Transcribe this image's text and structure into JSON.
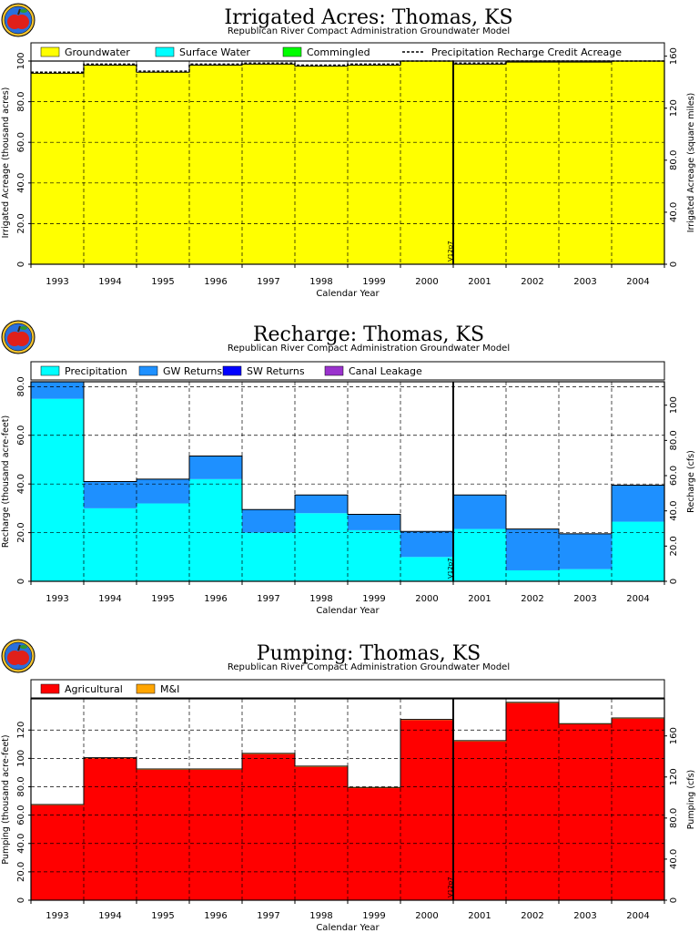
{
  "colors": {
    "groundwater": "#ffff00",
    "surface_water": "#00ffff",
    "commingled": "#00ff00",
    "precipitation": "#00ffff",
    "gw_returns": "#1e90ff",
    "sw_returns": "#0000ff",
    "canal_leakage": "#9a32cd",
    "agricultural": "#ff0000",
    "mi": "#ffa500",
    "logo_red": "#e0201a",
    "logo_ring": "#f4c430"
  },
  "logo_icon": "apple-logo-icon",
  "marker_label": "V12p7",
  "chart_data": [
    {
      "type": "area",
      "title": "Irrigated Acres: Thomas, KS",
      "subtitle": "Republican River Compact Administration Groundwater Model",
      "xlabel": "Calendar Year",
      "ylabel": "Irrigated Acreage (thousand acres)",
      "ylabel2": "Irrigated Acreage (square miles)",
      "categories": [
        "1993",
        "1994",
        "1995",
        "1996",
        "1997",
        "1998",
        "1999",
        "2000",
        "2001",
        "2002",
        "2003",
        "2004"
      ],
      "ylim": [
        0,
        100
      ],
      "yticks": [
        "0",
        "20.0",
        "40.0",
        "60.0",
        "80.0",
        "100"
      ],
      "y2lim": [
        0,
        156.25
      ],
      "y2ticks": [
        "0",
        "40.0",
        "80.0",
        "120",
        "160"
      ],
      "legend": [
        "Groundwater",
        "Surface Water",
        "Commingled",
        "Precipitation Recharge Credit Acreage"
      ],
      "legend_position": "top",
      "grid": true,
      "series": [
        {
          "name": "Groundwater",
          "values": [
            94,
            98,
            94.5,
            98,
            98.5,
            97.5,
            98,
            100,
            98.5,
            99.5,
            99.5,
            100
          ]
        },
        {
          "name": "Surface Water",
          "values": [
            0,
            0,
            0,
            0,
            0,
            0,
            0,
            0,
            0,
            0,
            0,
            0
          ]
        },
        {
          "name": "Commingled",
          "values": [
            0,
            0,
            0,
            0,
            0,
            0,
            0,
            0,
            0,
            0,
            0,
            0
          ]
        }
      ],
      "line_series": {
        "name": "Precipitation Recharge Credit Acreage",
        "values": [
          94.5,
          98.5,
          95,
          98.5,
          99,
          98,
          98.5,
          100.5,
          99,
          100,
          100,
          100.5
        ]
      }
    },
    {
      "type": "area",
      "title": "Recharge: Thomas, KS",
      "subtitle": "Republican River Compact Administration Groundwater Model",
      "xlabel": "Calendar Year",
      "ylabel": "Recharge (thousand acre-feet)",
      "ylabel2": "Recharge (cfs)",
      "categories": [
        "1993",
        "1994",
        "1995",
        "1996",
        "1997",
        "1998",
        "1999",
        "2000",
        "2001",
        "2002",
        "2003",
        "2004"
      ],
      "ylim": [
        0,
        82
      ],
      "yticks": [
        "0",
        "20.0",
        "40.0",
        "60.0",
        "80.0"
      ],
      "y2lim": [
        0,
        113.3
      ],
      "y2ticks": [
        "0",
        "20.0",
        "40.0",
        "60.0",
        "80.0",
        "100"
      ],
      "legend": [
        "Precipitation",
        "GW Returns",
        "SW Returns",
        "Canal Leakage"
      ],
      "legend_position": "top",
      "grid": true,
      "series": [
        {
          "name": "Precipitation",
          "values": [
            75,
            30,
            32,
            42,
            20,
            28,
            21,
            10,
            21.5,
            4.5,
            5,
            24.5
          ]
        },
        {
          "name": "GW Returns",
          "values": [
            7,
            11,
            10,
            9.5,
            9.5,
            7.5,
            6.5,
            10.5,
            14,
            17,
            14.5,
            15
          ]
        },
        {
          "name": "SW Returns",
          "values": [
            0,
            0,
            0,
            0,
            0,
            0,
            0,
            0,
            0,
            0,
            0,
            0
          ]
        },
        {
          "name": "Canal Leakage",
          "values": [
            0,
            0,
            0,
            0,
            0,
            0,
            0,
            0,
            0,
            0,
            0,
            0
          ]
        }
      ]
    },
    {
      "type": "area",
      "title": "Pumping: Thomas, KS",
      "subtitle": "Republican River Compact Administration Groundwater Model",
      "xlabel": "Calendar Year",
      "ylabel": "Pumping (thousand acre-feet)",
      "ylabel2": "Pumping (cfs)",
      "categories": [
        "1993",
        "1994",
        "1995",
        "1996",
        "1997",
        "1998",
        "1999",
        "2000",
        "2001",
        "2002",
        "2003",
        "2004"
      ],
      "ylim": [
        0,
        142
      ],
      "yticks": [
        "0",
        "20.0",
        "40.0",
        "60.0",
        "80.0",
        "100",
        "120"
      ],
      "y2lim": [
        0,
        196.1
      ],
      "y2ticks": [
        "0",
        "40.0",
        "80.0",
        "120",
        "160"
      ],
      "legend": [
        "Agricultural",
        "M&I"
      ],
      "legend_position": "top",
      "grid": true,
      "series": [
        {
          "name": "Agricultural",
          "values": [
            67,
            100,
            92,
            92,
            103,
            94,
            79,
            127,
            112,
            139,
            124,
            128
          ]
        },
        {
          "name": "M&I",
          "values": [
            0.5,
            0.5,
            0.5,
            0.5,
            0.5,
            0.5,
            0.5,
            0.5,
            0.5,
            0.5,
            0.5,
            0.5
          ]
        }
      ]
    }
  ]
}
